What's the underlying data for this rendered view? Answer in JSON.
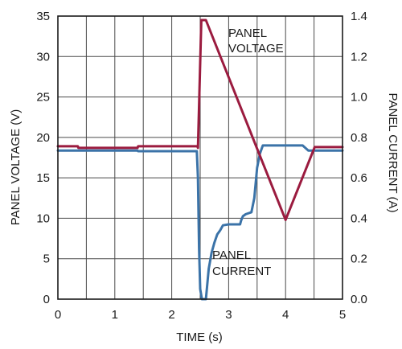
{
  "chart_data": {
    "type": "line",
    "title": "",
    "xlabel": "TIME (s)",
    "ylabel_left": "PANEL VOLTAGE (V)",
    "ylabel_right": "PANEL CURRENT (A)",
    "xlim": [
      0,
      5
    ],
    "ylim_left": [
      0,
      35
    ],
    "ylim_right": [
      0,
      1.4
    ],
    "x_ticks": [
      "0",
      "1",
      "2",
      "3",
      "4",
      "5"
    ],
    "y_left_ticks": [
      "0",
      "5",
      "10",
      "15",
      "20",
      "25",
      "30",
      "35"
    ],
    "y_right_ticks": [
      "0.0",
      "0.2",
      "0.4",
      "0.6",
      "0.8",
      "1.0",
      "1.2",
      "1.4"
    ],
    "grid": true,
    "colors": {
      "voltage": "#9b1b3f",
      "current": "#3b73a8",
      "grid": "#4a4a4a"
    },
    "annotations": [
      {
        "lines": [
          "PANEL",
          "VOLTAGE"
        ]
      },
      {
        "lines": [
          "PANEL",
          "CURRENT"
        ]
      }
    ],
    "series": [
      {
        "name": "PANEL VOLTAGE",
        "axis": "left",
        "x": [
          0,
          0.35,
          0.36,
          1.4,
          1.41,
          2.45,
          2.46,
          2.52,
          2.6,
          3.5,
          4.0,
          4.5,
          4.51,
          5.0
        ],
        "y": [
          18.9,
          18.9,
          18.7,
          18.7,
          18.9,
          18.9,
          18.7,
          34.5,
          34.5,
          18.6,
          9.8,
          18.6,
          18.8,
          18.8
        ]
      },
      {
        "name": "PANEL CURRENT",
        "axis": "right",
        "x": [
          0,
          1.4,
          1.41,
          2.44,
          2.46,
          2.48,
          2.5,
          2.53,
          2.56,
          2.6,
          2.65,
          2.7,
          2.75,
          2.8,
          2.85,
          2.9,
          3.0,
          3.2,
          3.22,
          3.25,
          3.3,
          3.35,
          3.4,
          3.45,
          3.5,
          3.55,
          3.6,
          4.3,
          4.4,
          5.0
        ],
        "y": [
          0.735,
          0.735,
          0.732,
          0.732,
          0.6,
          0.25,
          0.05,
          0.0,
          0.0,
          0.0,
          0.15,
          0.23,
          0.28,
          0.32,
          0.34,
          0.365,
          0.37,
          0.37,
          0.39,
          0.41,
          0.42,
          0.425,
          0.43,
          0.5,
          0.65,
          0.72,
          0.76,
          0.76,
          0.735,
          0.735
        ]
      }
    ]
  }
}
